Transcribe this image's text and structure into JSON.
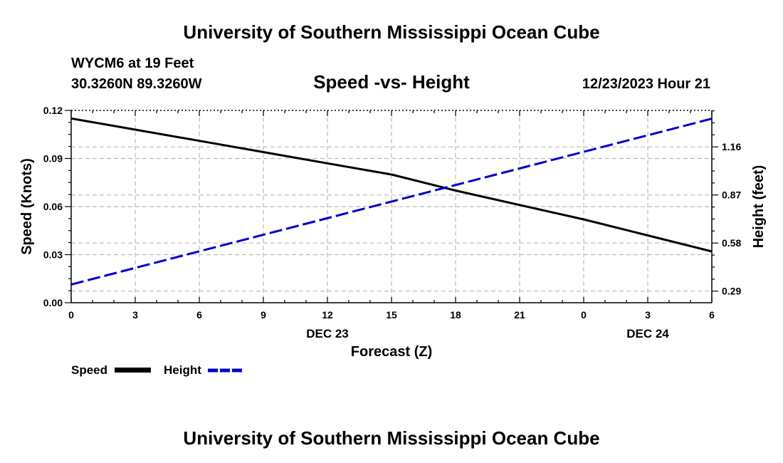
{
  "header": {
    "title": "University of Southern Mississippi Ocean Cube",
    "station": "WYCM6 at 19 Feet",
    "coords": "30.3260N  89.3260W",
    "date": "12/23/2023 Hour 21"
  },
  "footer": {
    "title": "University of Southern Mississippi Ocean Cube"
  },
  "colors": {
    "speed": "#000000",
    "height": "#0000cc",
    "grid": "#bbbbbb"
  },
  "chart_data": {
    "type": "line",
    "title": "Speed -vs- Height",
    "xlabel": "Forecast (Z)",
    "ylabel": "Speed (Knots)",
    "y2label": "Height (feet)",
    "x_tick_labels": [
      "0",
      "3",
      "6",
      "9",
      "12",
      "15",
      "18",
      "21",
      "0",
      "3",
      "6"
    ],
    "x_hours": [
      0,
      3,
      6,
      9,
      12,
      15,
      18,
      21,
      24,
      27,
      30
    ],
    "date_labels": [
      {
        "label": "DEC 23",
        "hour": 12
      },
      {
        "label": "DEC 24",
        "hour": 27
      }
    ],
    "y_ticks": [
      "0.00",
      "0.03",
      "0.06",
      "0.09",
      "0.12"
    ],
    "ylim": [
      0,
      0.12
    ],
    "y2_ticks": [
      "0.29",
      "0.58",
      "0.87",
      "1.16"
    ],
    "y2lim": [
      0.22,
      1.38
    ],
    "grid": true,
    "legend_position": "bottom-left",
    "series": [
      {
        "name": "Speed",
        "axis": "left",
        "style": "solid",
        "x": [
          0,
          3,
          6,
          9,
          12,
          15,
          18,
          21,
          24,
          27,
          30
        ],
        "values": [
          0.115,
          0.108,
          0.101,
          0.094,
          0.087,
          0.08,
          0.07,
          0.061,
          0.052,
          0.042,
          0.032
        ]
      },
      {
        "name": "Height",
        "axis": "right",
        "style": "dashed",
        "x": [
          0,
          30
        ],
        "values": [
          0.33,
          1.33
        ]
      }
    ]
  }
}
